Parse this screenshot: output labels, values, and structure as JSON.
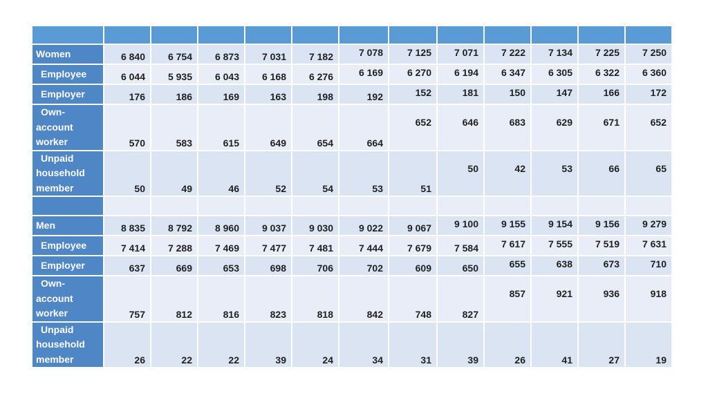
{
  "years_count": 12,
  "sections": [
    {
      "rows": [
        {
          "label": [
            "Women"
          ],
          "values": [
            "6 840",
            "6 754",
            "6 873",
            "7 031",
            "7 182",
            "7 078",
            "7 125",
            "7 071",
            "7 222",
            "7 134",
            "7 225",
            "7 250"
          ]
        },
        {
          "label": [
            "Employee"
          ],
          "values": [
            "6 044",
            "5 935",
            "6 043",
            "6 168",
            "6 276",
            "6 169",
            "6 270",
            "6 194",
            "6 347",
            "6 305",
            "6 322",
            "6 360"
          ]
        },
        {
          "label": [
            "Employer"
          ],
          "values": [
            "176",
            "186",
            "169",
            "163",
            "198",
            "192",
            "152",
            "181",
            "150",
            "147",
            "166",
            "172"
          ]
        },
        {
          "label": [
            "Own-",
            "account",
            "worker"
          ],
          "values": [
            "570",
            "583",
            "615",
            "649",
            "654",
            "664",
            "652",
            "646",
            "683",
            "629",
            "671",
            "652"
          ]
        },
        {
          "label": [
            "Unpaid",
            "household",
            "member"
          ],
          "values": [
            "50",
            "49",
            "46",
            "52",
            "54",
            "53",
            "51",
            "50",
            "42",
            "53",
            "66",
            "65"
          ]
        }
      ]
    },
    {
      "rows": [
        {
          "label": [
            "Men"
          ],
          "values": [
            "8 835",
            "8 792",
            "8 960",
            "9 037",
            "9 030",
            "9 022",
            "9 067",
            "9 100",
            "9 155",
            "9 154",
            "9 156",
            "9 279"
          ]
        },
        {
          "label": [
            "Employee"
          ],
          "values": [
            "7 414",
            "7 288",
            "7 469",
            "7 477",
            "7 481",
            "7 444",
            "7 679",
            "7 584",
            "7 617",
            "7 555",
            "7 519",
            "7 631"
          ]
        },
        {
          "label": [
            "Employer"
          ],
          "values": [
            "637",
            "669",
            "653",
            "698",
            "706",
            "702",
            "609",
            "650",
            "655",
            "638",
            "673",
            "710"
          ]
        },
        {
          "label": [
            "Own-",
            "account",
            "worker"
          ],
          "values": [
            "757",
            "812",
            "816",
            "823",
            "818",
            "842",
            "748",
            "827",
            "857",
            "921",
            "936",
            "918"
          ]
        },
        {
          "label": [
            "Unpaid",
            "household",
            "member"
          ],
          "values": [
            "26",
            "22",
            "22",
            "39",
            "24",
            "34",
            "31",
            "39",
            "26",
            "41",
            "27",
            "19"
          ]
        }
      ]
    }
  ]
}
